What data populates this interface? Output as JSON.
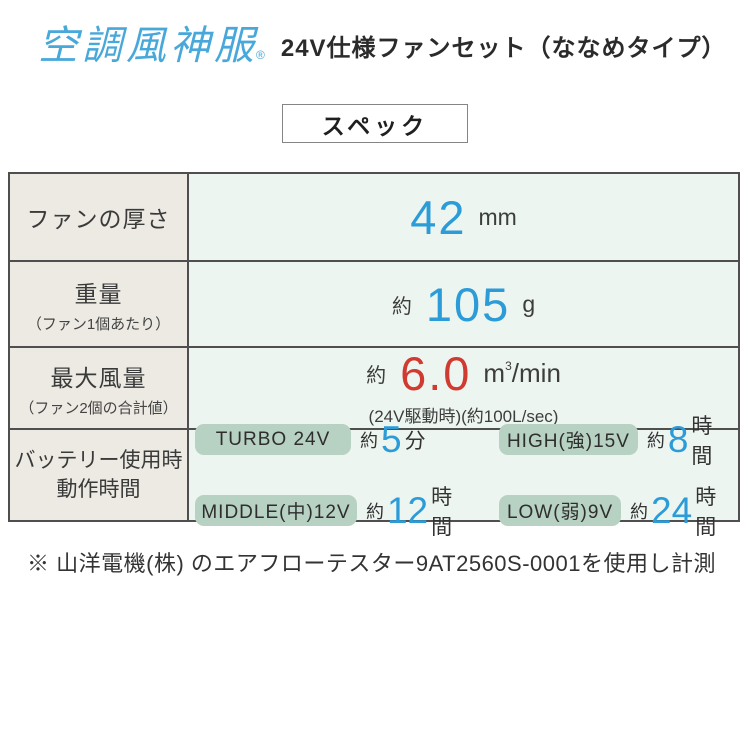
{
  "brand": {
    "logo_text": "空調風神服",
    "registered_mark": "®"
  },
  "header": {
    "title": "24V仕様ファンセット（ななめタイプ）"
  },
  "spec_badge": {
    "label": "スペック"
  },
  "spec_table": {
    "rows": [
      {
        "label": "ファンの厚さ",
        "value": "42",
        "unit": "mm"
      },
      {
        "label": "重量",
        "sublabel": "（ファン1個あたり）",
        "approx": "約",
        "value": "105",
        "unit": "g"
      },
      {
        "label": "最大風量",
        "sublabel": "（ファン2個の合計値）",
        "approx": "約",
        "value": "6.0",
        "unit_base": "m",
        "unit_sup": "3",
        "unit_rest": "/min",
        "note": "(24V駆動時)(約100L/sec)"
      },
      {
        "label_line1": "バッテリー使用時",
        "label_line2": "動作時間",
        "entries": [
          {
            "mode": "TURBO 24V",
            "approx": "約",
            "value": "5",
            "unit": "分"
          },
          {
            "mode": "HIGH(強)15V",
            "approx": "約",
            "value": "8",
            "unit": "時間"
          },
          {
            "mode": "MIDDLE(中)12V",
            "approx": "約",
            "value": "12",
            "unit": "時間"
          },
          {
            "mode": "LOW(弱)9V",
            "approx": "約",
            "value": "24",
            "unit": "時間"
          }
        ]
      }
    ]
  },
  "footnote": "※ 山洋電機(株) のエアフローテスター9AT2560S-0001を使用し計測",
  "colors": {
    "logo_blue": "#48A8DA",
    "accent_blue": "#2B9CD8",
    "accent_red": "#D13A30",
    "pill_green": "#B7D1C3",
    "label_cell_bg": "#ECEAE3",
    "value_cell_bg": "#EDF5F0",
    "table_border": "#4F4F4F"
  }
}
